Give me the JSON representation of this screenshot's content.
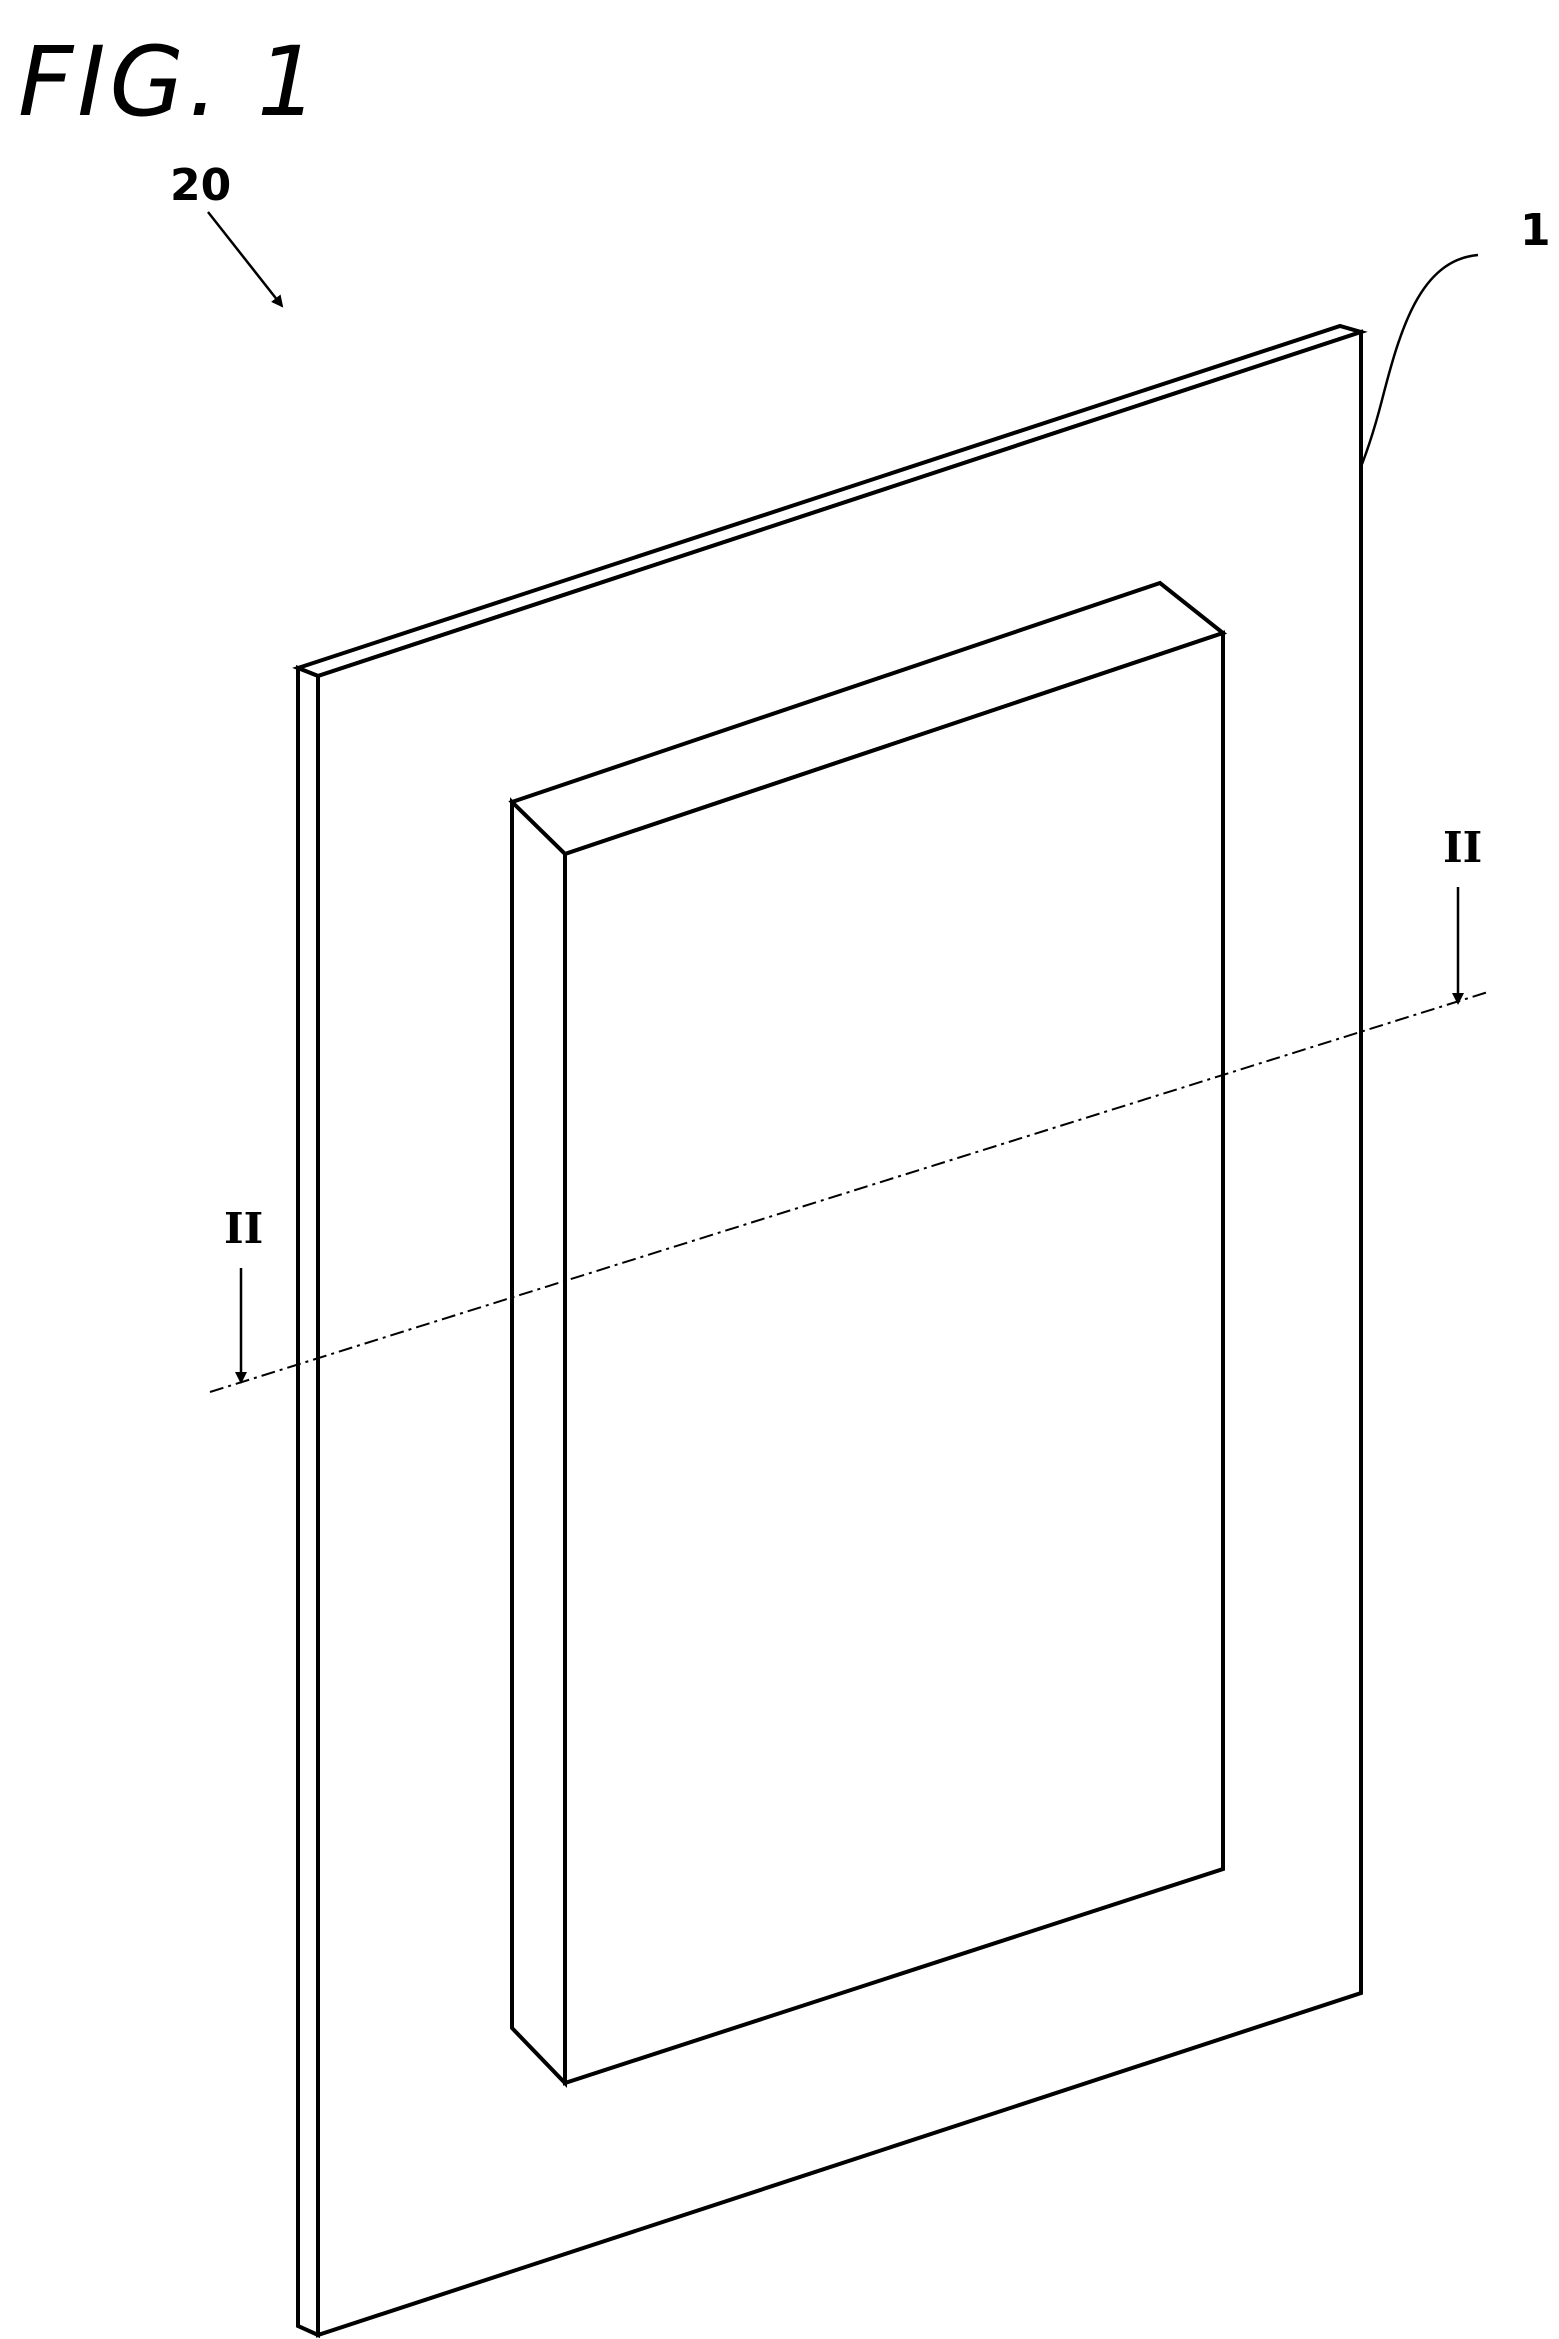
{
  "figure": {
    "title": "FIG. 1"
  },
  "labels": {
    "assembly_ref": "20",
    "plate_ref": "1",
    "section_mark_left": "II",
    "section_mark_right": "II"
  },
  "colors": {
    "line": "#000000",
    "background": "#ffffff"
  }
}
